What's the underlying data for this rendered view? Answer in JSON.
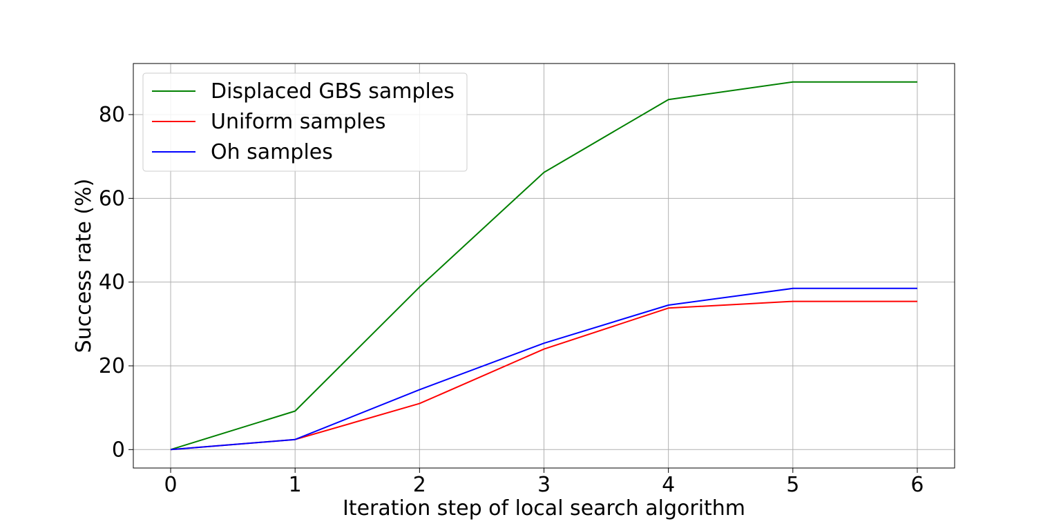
{
  "chart_data": {
    "type": "line",
    "xlabel": "Iteration step of local search algorithm",
    "ylabel": "Success rate (%)",
    "x": [
      0,
      1,
      2,
      3,
      4,
      5,
      6
    ],
    "xlim": [
      -0.3,
      6.3
    ],
    "ylim": [
      -4.4,
      92.2
    ],
    "xticks": [
      0,
      1,
      2,
      3,
      4,
      5,
      6
    ],
    "yticks": [
      0,
      20,
      40,
      60,
      80
    ],
    "grid": true,
    "legend_position": "upper-left",
    "series": [
      {
        "name": "Displaced GBS samples",
        "color": "#008000",
        "values": [
          0,
          9.2,
          38.8,
          66.2,
          83.6,
          87.8,
          87.8
        ]
      },
      {
        "name": "Uniform samples",
        "color": "#ff0000",
        "values": [
          0,
          2.4,
          11.0,
          24.0,
          33.8,
          35.4,
          35.4
        ]
      },
      {
        "name": "Oh samples",
        "color": "#0000ff",
        "values": [
          0,
          2.4,
          14.3,
          25.4,
          34.5,
          38.5,
          38.5
        ]
      }
    ]
  }
}
